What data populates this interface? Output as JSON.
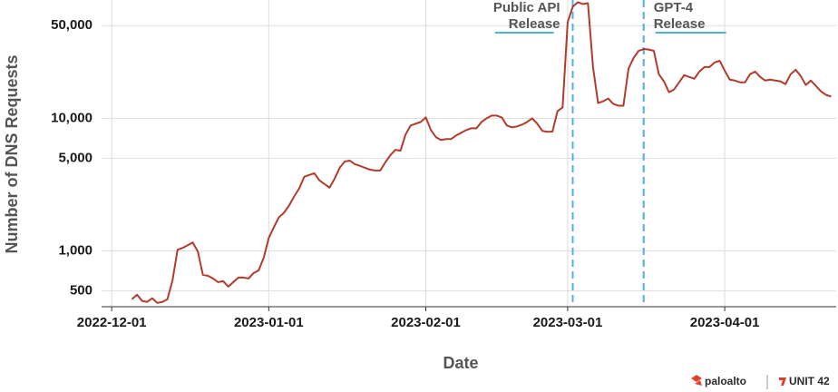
{
  "chart_data": {
    "type": "line",
    "scale": "log",
    "grid": true,
    "color": "#b13c2c",
    "xlabel": "Date",
    "ylabel": "Number of DNS Requests",
    "xlim": [
      "2022-11-29",
      "2023-04-23"
    ],
    "xticks": [
      "2022-12-01",
      "2023-01-01",
      "2023-02-01",
      "2023-03-01",
      "2023-04-01"
    ],
    "ylim": [
      380,
      78000
    ],
    "yticks": [
      {
        "value": 50000,
        "label": "50,000"
      },
      {
        "value": 10000,
        "label": "10,000"
      },
      {
        "value": 5000,
        "label": "5,000"
      },
      {
        "value": 1000,
        "label": "1,000"
      },
      500
    ],
    "annotations": [
      {
        "x": "2023-03-02",
        "lines": [
          "Public API",
          "Release"
        ],
        "side": "left",
        "color": "#4db1e6"
      },
      {
        "x": "2023-03-16",
        "lines": [
          "GPT-4",
          "Release"
        ],
        "side": "right",
        "color": "#4db1e6"
      }
    ],
    "x": [
      "2022-12-05",
      "2022-12-06",
      "2022-12-07",
      "2022-12-08",
      "2022-12-09",
      "2022-12-10",
      "2022-12-11",
      "2022-12-12",
      "2022-12-13",
      "2022-12-14",
      "2022-12-15",
      "2022-12-16",
      "2022-12-17",
      "2022-12-18",
      "2022-12-19",
      "2022-12-20",
      "2022-12-21",
      "2022-12-22",
      "2022-12-23",
      "2022-12-24",
      "2022-12-25",
      "2022-12-26",
      "2022-12-27",
      "2022-12-28",
      "2022-12-29",
      "2022-12-30",
      "2022-12-31",
      "2023-01-01",
      "2023-01-02",
      "2023-01-03",
      "2023-01-04",
      "2023-01-05",
      "2023-01-06",
      "2023-01-07",
      "2023-01-08",
      "2023-01-09",
      "2023-01-10",
      "2023-01-11",
      "2023-01-12",
      "2023-01-13",
      "2023-01-14",
      "2023-01-15",
      "2023-01-16",
      "2023-01-17",
      "2023-01-18",
      "2023-01-19",
      "2023-01-20",
      "2023-01-21",
      "2023-01-22",
      "2023-01-23",
      "2023-01-24",
      "2023-01-25",
      "2023-01-26",
      "2023-01-27",
      "2023-01-28",
      "2023-01-29",
      "2023-01-30",
      "2023-01-31",
      "2023-02-01",
      "2023-02-02",
      "2023-02-03",
      "2023-02-04",
      "2023-02-05",
      "2023-02-06",
      "2023-02-07",
      "2023-02-08",
      "2023-02-09",
      "2023-02-10",
      "2023-02-11",
      "2023-02-12",
      "2023-02-13",
      "2023-02-14",
      "2023-02-15",
      "2023-02-16",
      "2023-02-17",
      "2023-02-18",
      "2023-02-19",
      "2023-02-20",
      "2023-02-21",
      "2023-02-22",
      "2023-02-23",
      "2023-02-24",
      "2023-02-25",
      "2023-02-26",
      "2023-02-27",
      "2023-02-28",
      "2023-03-01",
      "2023-03-02",
      "2023-03-03",
      "2023-03-04",
      "2023-03-05",
      "2023-03-06",
      "2023-03-07",
      "2023-03-08",
      "2023-03-09",
      "2023-03-10",
      "2023-03-11",
      "2023-03-12",
      "2023-03-13",
      "2023-03-14",
      "2023-03-15",
      "2023-03-16",
      "2023-03-17",
      "2023-03-18",
      "2023-03-19",
      "2023-03-20",
      "2023-03-21",
      "2023-03-22",
      "2023-03-23",
      "2023-03-24",
      "2023-03-25",
      "2023-03-26",
      "2023-03-27",
      "2023-03-28",
      "2023-03-29",
      "2023-03-30",
      "2023-03-31",
      "2023-04-01",
      "2023-04-02",
      "2023-04-03",
      "2023-04-04",
      "2023-04-05",
      "2023-04-06",
      "2023-04-07",
      "2023-04-08",
      "2023-04-09",
      "2023-04-10",
      "2023-04-11",
      "2023-04-12",
      "2023-04-13",
      "2023-04-14",
      "2023-04-15",
      "2023-04-16",
      "2023-04-17",
      "2023-04-18",
      "2023-04-19",
      "2023-04-20",
      "2023-04-21",
      "2023-04-22"
    ],
    "values": [
      433,
      468,
      420,
      413,
      440,
      406,
      413,
      433,
      601,
      1022,
      1054,
      1105,
      1159,
      990,
      661,
      650,
      620,
      582,
      592,
      539,
      582,
      630,
      630,
      620,
      681,
      714,
      888,
      1252,
      1511,
      1794,
      1940,
      2198,
      2570,
      2958,
      3622,
      3738,
      3856,
      3404,
      3197,
      3004,
      3512,
      4236,
      4723,
      4797,
      4508,
      4380,
      4236,
      4100,
      4042,
      4042,
      4653,
      5272,
      5790,
      5700,
      7548,
      8825,
      9105,
      9394,
      10157,
      8162,
      7204,
      6871,
      6982,
      6982,
      7433,
      7788,
      8162,
      8420,
      8420,
      9394,
      10000,
      10480,
      10480,
      10157,
      8825,
      8552,
      8690,
      8964,
      9394,
      10000,
      9105,
      8035,
      7910,
      7950,
      11330,
      12064,
      53200,
      69400,
      75000,
      72700,
      73800,
      24360,
      13040,
      13450,
      14100,
      12840,
      12450,
      12450,
      23610,
      28480,
      32280,
      33310,
      33000,
      32280,
      21500,
      18970,
      15730,
      16490,
      18680,
      21170,
      20510,
      19880,
      22530,
      24360,
      24360,
      26340,
      27180,
      22890,
      19570,
      19270,
      18680,
      18680,
      21500,
      22530,
      20510,
      19270,
      19570,
      19270,
      19000,
      18100,
      21500,
      23250,
      20840,
      17830,
      19270,
      17550,
      15970,
      15010,
      14600
    ]
  },
  "branding": [
    "paloalto",
    "UNIT 42"
  ]
}
